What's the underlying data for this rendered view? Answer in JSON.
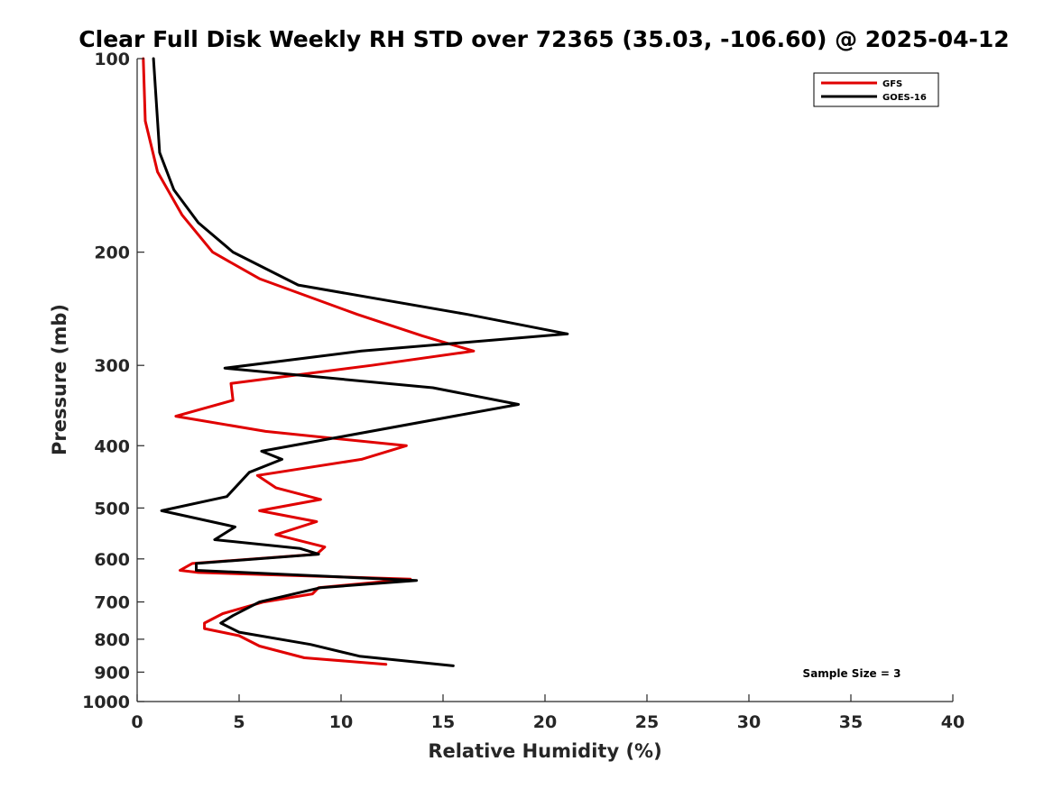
{
  "chart_data": {
    "type": "line",
    "title": "Clear Full Disk Weekly RH STD over 72365 (35.03, -106.60) @ 2025-04-12",
    "xlabel": "Relative Humidity (%)",
    "ylabel": "Pressure (mb)",
    "xlim": [
      0,
      40
    ],
    "ylim": [
      100,
      1000
    ],
    "y_scale": "log",
    "y_reversed": true,
    "x_ticks": [
      0,
      5,
      10,
      15,
      20,
      25,
      30,
      35,
      40
    ],
    "y_ticks": [
      100,
      200,
      300,
      400,
      500,
      600,
      700,
      800,
      900,
      1000
    ],
    "legend_position": "top-right",
    "annotation": "Sample Size = 3",
    "series": [
      {
        "name": "GFS",
        "color": "#e00000",
        "points": [
          [
            0.3,
            100
          ],
          [
            0.4,
            125
          ],
          [
            1.0,
            150
          ],
          [
            2.2,
            175
          ],
          [
            3.7,
            200
          ],
          [
            6.0,
            220
          ],
          [
            10.8,
            250
          ],
          [
            14.0,
            270
          ],
          [
            16.5,
            285
          ],
          [
            11.5,
            300
          ],
          [
            4.6,
            320
          ],
          [
            4.7,
            340
          ],
          [
            1.9,
            360
          ],
          [
            6.3,
            380
          ],
          [
            13.2,
            400
          ],
          [
            11.0,
            420
          ],
          [
            5.9,
            445
          ],
          [
            6.8,
            465
          ],
          [
            9.0,
            485
          ],
          [
            6.0,
            505
          ],
          [
            8.8,
            525
          ],
          [
            6.8,
            550
          ],
          [
            9.2,
            575
          ],
          [
            8.8,
            590
          ],
          [
            2.7,
            610
          ],
          [
            2.1,
            625
          ],
          [
            3.0,
            630
          ],
          [
            13.4,
            645
          ],
          [
            8.9,
            665
          ],
          [
            8.6,
            680
          ],
          [
            6.2,
            700
          ],
          [
            4.2,
            730
          ],
          [
            3.3,
            755
          ],
          [
            3.3,
            770
          ],
          [
            5.0,
            790
          ],
          [
            6.0,
            820
          ],
          [
            8.2,
            855
          ],
          [
            12.2,
            875
          ]
        ]
      },
      {
        "name": "GOES-16",
        "color": "#000000",
        "points": [
          [
            0.8,
            100
          ],
          [
            1.1,
            140
          ],
          [
            1.8,
            160
          ],
          [
            3.0,
            180
          ],
          [
            4.7,
            200
          ],
          [
            7.9,
            225
          ],
          [
            16.2,
            250
          ],
          [
            21.1,
            268
          ],
          [
            11.0,
            285
          ],
          [
            4.3,
            303
          ],
          [
            14.5,
            325
          ],
          [
            18.7,
            345
          ],
          [
            9.5,
            390
          ],
          [
            6.1,
            408
          ],
          [
            7.1,
            420
          ],
          [
            5.5,
            440
          ],
          [
            4.4,
            480
          ],
          [
            1.2,
            505
          ],
          [
            4.8,
            535
          ],
          [
            3.8,
            560
          ],
          [
            8.0,
            578
          ],
          [
            8.9,
            590
          ],
          [
            2.9,
            610
          ],
          [
            2.9,
            625
          ],
          [
            13.7,
            648
          ],
          [
            9.0,
            665
          ],
          [
            6.0,
            700
          ],
          [
            4.7,
            735
          ],
          [
            4.1,
            755
          ],
          [
            5.0,
            780
          ],
          [
            8.5,
            815
          ],
          [
            10.9,
            850
          ],
          [
            15.5,
            880
          ]
        ]
      }
    ]
  }
}
